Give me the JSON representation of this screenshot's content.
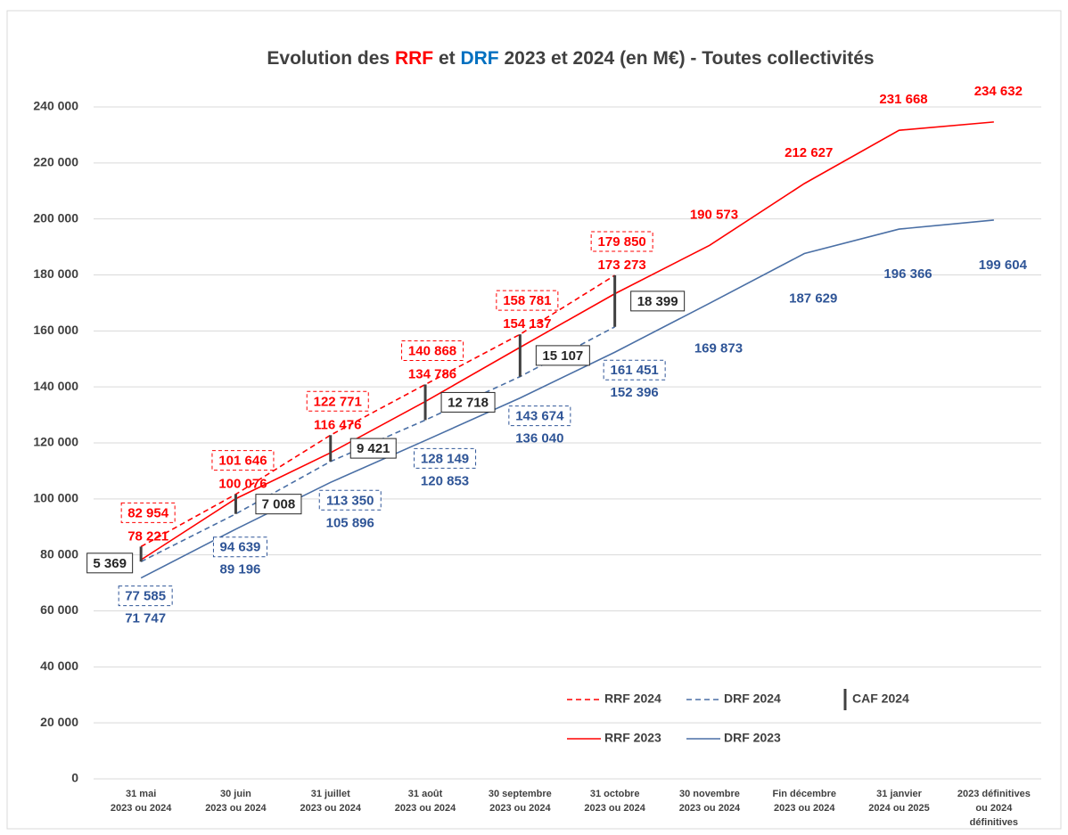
{
  "chart_data": {
    "type": "line",
    "title": [
      "Evolution des ",
      "RRF",
      " et ",
      "DRF",
      " 2023 et 2024 (en M€) - Toutes collectivités"
    ],
    "title_colors": [
      "#404040",
      "#ff0000",
      "#404040",
      "#0070c0",
      "#404040"
    ],
    "categories": [
      [
        "31 mai",
        "2023 ou 2024"
      ],
      [
        "30 juin",
        "2023 ou 2024"
      ],
      [
        "31 juillet",
        "2023 ou 2024"
      ],
      [
        "31 août",
        "2023 ou 2024"
      ],
      [
        "30 septembre",
        "2023 ou 2024"
      ],
      [
        "31 octobre",
        "2023 ou 2024"
      ],
      [
        "30 novembre",
        "2023 ou 2024"
      ],
      [
        "Fin décembre",
        "2023 ou 2024"
      ],
      [
        "31 janvier",
        "2024 ou 2025"
      ],
      [
        "2023 définitives",
        "ou 2024",
        "définitives"
      ]
    ],
    "series": [
      {
        "name": "RRF 2024",
        "color": "#ff0000",
        "dashed": true,
        "values": [
          82954,
          101646,
          122771,
          140868,
          158781,
          179850,
          null,
          null,
          null,
          null
        ],
        "value_labels": [
          "82 954",
          "101 646",
          "122 771",
          "140 868",
          "158 781",
          "179 850",
          null,
          null,
          null,
          null
        ]
      },
      {
        "name": "DRF 2024",
        "color": "#4a6fa5",
        "dashed": true,
        "values": [
          77585,
          94639,
          113350,
          128149,
          143674,
          161451,
          null,
          null,
          null,
          null
        ],
        "value_labels": [
          "77 585",
          "94 639",
          "113 350",
          "128 149",
          "143 674",
          "161 451",
          null,
          null,
          null,
          null
        ]
      },
      {
        "name": "CAF 2024",
        "color": "#404040",
        "style": "range",
        "base_series": 1,
        "values": [
          5369,
          7008,
          9421,
          12718,
          15107,
          18399,
          null,
          null,
          null,
          null
        ],
        "value_labels": [
          "5 369",
          "7 008",
          "9 421",
          "12 718",
          "15 107",
          "18 399",
          null,
          null,
          null,
          null
        ]
      },
      {
        "name": "RRF 2023",
        "color": "#ff0000",
        "dashed": false,
        "values": [
          78221,
          100076,
          116476,
          134786,
          154137,
          173273,
          190573,
          212627,
          231668,
          234632
        ],
        "value_labels": [
          "78 221",
          "100 076",
          "116 476",
          "134 786",
          "154 137",
          "173 273",
          "190 573",
          "212 627",
          "231 668",
          "234 632"
        ]
      },
      {
        "name": "DRF 2023",
        "color": "#4a6fa5",
        "dashed": false,
        "values": [
          71747,
          89196,
          105896,
          120853,
          136040,
          152396,
          169873,
          187629,
          196366,
          199604
        ],
        "value_labels": [
          "71 747",
          "89 196",
          "105 896",
          "120 853",
          "136 040",
          "152 396",
          "169 873",
          "187 629",
          "196 366",
          "199 604"
        ]
      }
    ],
    "label_colors": {
      "RRF": "#ff0000",
      "DRF": "#2f5597",
      "CAF": "#262626"
    },
    "ylim": [
      0,
      240000
    ],
    "yticks": [
      0,
      {
        "value": 20000,
        "label": "20 000"
      },
      {
        "value": 40000,
        "label": "40 000"
      },
      {
        "value": 60000,
        "label": "60 000"
      },
      {
        "value": 80000,
        "label": "80 000"
      },
      {
        "value": 100000,
        "label": "100 000"
      },
      {
        "value": 120000,
        "label": "120 000"
      },
      {
        "value": 140000,
        "label": "140 000"
      },
      {
        "value": 160000,
        "label": "160 000"
      },
      {
        "value": 180000,
        "label": "180 000"
      },
      {
        "value": 200000,
        "label": "200 000"
      },
      {
        "value": 220000,
        "label": "220 000"
      },
      {
        "value": 240000,
        "label": "240 000"
      }
    ],
    "grid": true
  }
}
